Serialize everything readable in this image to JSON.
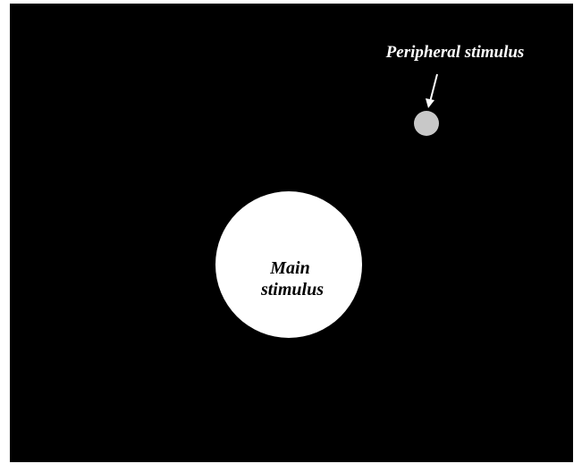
{
  "peripheral": {
    "label": "Peripheral stimulus"
  },
  "main": {
    "label_lines": [
      "Main",
      "stimulus"
    ]
  }
}
